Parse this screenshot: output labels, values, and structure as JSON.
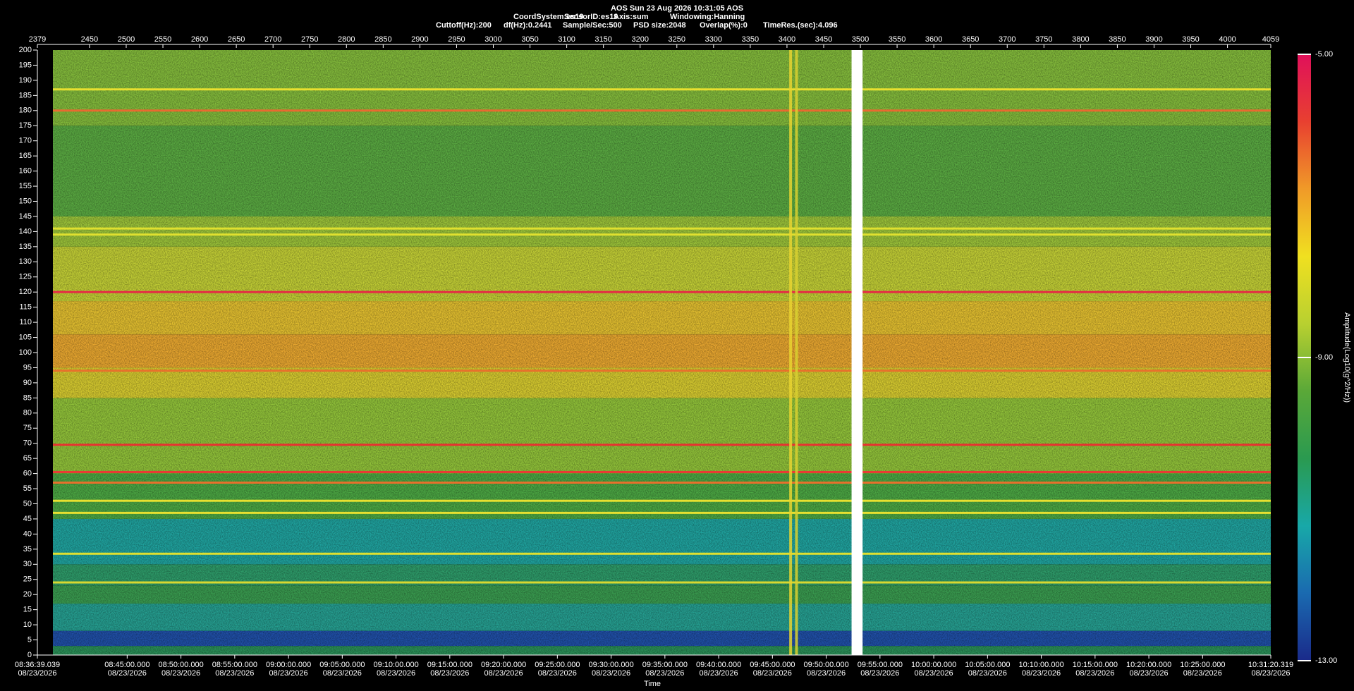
{
  "chart_data": {
    "type": "spectrogram",
    "title": "AOS  Sun 23 Aug 2026 10:31:05  AOS",
    "subtitle": [
      "CoordSystem:es19",
      "SensorID:es19",
      "Axis:sum",
      "Windowing:Hanning"
    ],
    "info": [
      "Cuttoff(Hz):200",
      "df(Hz):0.2441",
      "Sample/Sec:500",
      "PSD size:2048",
      "Overlap(%):0",
      "TimeRes.(sec):4.096"
    ],
    "xlim": [
      2379,
      4059
    ],
    "xticks": [
      2379,
      2450,
      2500,
      2550,
      2600,
      2650,
      2700,
      2750,
      2800,
      2850,
      2900,
      2950,
      3000,
      3050,
      3100,
      3150,
      3200,
      3250,
      3300,
      3350,
      3400,
      3450,
      3500,
      3550,
      3600,
      3650,
      3700,
      3750,
      3800,
      3850,
      3900,
      3950,
      4000,
      4059
    ],
    "ylim": [
      0,
      200
    ],
    "yticks": [
      0,
      5,
      10,
      15,
      20,
      25,
      30,
      35,
      40,
      45,
      50,
      55,
      60,
      65,
      70,
      75,
      80,
      85,
      90,
      95,
      100,
      105,
      110,
      115,
      120,
      125,
      130,
      135,
      140,
      145,
      150,
      155,
      160,
      165,
      170,
      175,
      180,
      185,
      190,
      195,
      200
    ],
    "x_label": "Time",
    "time_ticks": [
      {
        "label": "08:36:39.039",
        "date": "08/23/2026"
      },
      {
        "label": "08:45:00.000",
        "date": "08/23/2026"
      },
      {
        "label": "08:50:00.000",
        "date": "08/23/2026"
      },
      {
        "label": "08:55:00.000",
        "date": "08/23/2026"
      },
      {
        "label": "09:00:00.000",
        "date": "08/23/2026"
      },
      {
        "label": "09:05:00.000",
        "date": "08/23/2026"
      },
      {
        "label": "09:10:00.000",
        "date": "08/23/2026"
      },
      {
        "label": "09:15:00.000",
        "date": "08/23/2026"
      },
      {
        "label": "09:20:00.000",
        "date": "08/23/2026"
      },
      {
        "label": "09:25:00.000",
        "date": "08/23/2026"
      },
      {
        "label": "09:30:00.000",
        "date": "08/23/2026"
      },
      {
        "label": "09:35:00.000",
        "date": "08/23/2026"
      },
      {
        "label": "09:40:00.000",
        "date": "08/23/2026"
      },
      {
        "label": "09:45:00.000",
        "date": "08/23/2026"
      },
      {
        "label": "09:50:00.000",
        "date": "08/23/2026"
      },
      {
        "label": "09:55:00.000",
        "date": "08/23/2026"
      },
      {
        "label": "10:00:00.000",
        "date": "08/23/2026"
      },
      {
        "label": "10:05:00.000",
        "date": "08/23/2026"
      },
      {
        "label": "10:10:00.000",
        "date": "08/23/2026"
      },
      {
        "label": "10:15:00.000",
        "date": "08/23/2026"
      },
      {
        "label": "10:20:00.000",
        "date": "08/23/2026"
      },
      {
        "label": "10:25:00.000",
        "date": "08/23/2026"
      },
      {
        "label": "10:31:20.319",
        "date": "08/23/2026"
      }
    ],
    "colorbar_label": "Amplitude(Log10(g^2/Hz))",
    "clim": [
      -13,
      -5
    ],
    "cticks": [
      {
        "value": -13,
        "label": "-13.00"
      },
      {
        "value": -9,
        "label": "-9.00"
      },
      {
        "value": -5,
        "label": "-5.00"
      }
    ],
    "colormap": [
      "#1a2a8a",
      "#1a6ab0",
      "#18a8a8",
      "#2a9a50",
      "#5aa838",
      "#b8d030",
      "#f0e020",
      "#f09a28",
      "#e84030",
      "#e0105a"
    ],
    "bands": [
      {
        "range": [
          0,
          3
        ],
        "color": "#2a9058"
      },
      {
        "range": [
          3,
          8
        ],
        "color": "#2050a8"
      },
      {
        "range": [
          8,
          17
        ],
        "color": "#26a092"
      },
      {
        "range": [
          17,
          23
        ],
        "color": "#3a9c50"
      },
      {
        "range": [
          23,
          30
        ],
        "color": "#2e9c6a"
      },
      {
        "range": [
          30,
          45
        ],
        "color": "#20a4a0"
      },
      {
        "range": [
          45,
          60
        ],
        "color": "#4ca844"
      },
      {
        "range": [
          60,
          85
        ],
        "color": "#92c43a"
      },
      {
        "range": [
          85,
          95
        ],
        "color": "#d8cc30"
      },
      {
        "range": [
          95,
          106
        ],
        "color": "#eaa830"
      },
      {
        "range": [
          106,
          117
        ],
        "color": "#e4c030"
      },
      {
        "range": [
          117,
          135
        ],
        "color": "#c4d036"
      },
      {
        "range": [
          135,
          145
        ],
        "color": "#9cc43a"
      },
      {
        "range": [
          145,
          175
        ],
        "color": "#5aaa42"
      },
      {
        "range": [
          175,
          200
        ],
        "color": "#84bc3c"
      }
    ],
    "lines": [
      {
        "freq": 120,
        "color": "#e42c44"
      },
      {
        "freq": 180,
        "color": "#e86a30"
      },
      {
        "freq": 69.5,
        "color": "#e83030"
      },
      {
        "freq": 60.5,
        "color": "#e83a34"
      },
      {
        "freq": 57,
        "color": "#e8702c"
      },
      {
        "freq": 94,
        "color": "#e8702c"
      },
      {
        "freq": 187,
        "color": "#e8e030"
      },
      {
        "freq": 141,
        "color": "#e0e030"
      },
      {
        "freq": 139,
        "color": "#e0e030"
      },
      {
        "freq": 51,
        "color": "#e8e030"
      },
      {
        "freq": 47,
        "color": "#e8e030"
      },
      {
        "freq": 33.5,
        "color": "#e0e030"
      },
      {
        "freq": 24,
        "color": "#d8d830"
      }
    ],
    "events": [
      {
        "x": 3405,
        "color": "#e8d430"
      },
      {
        "x": 3413,
        "color": "#d8d030"
      }
    ],
    "gap": [
      3488,
      3503
    ]
  }
}
